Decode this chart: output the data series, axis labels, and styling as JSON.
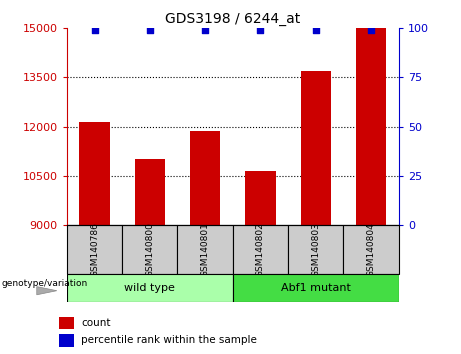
{
  "title": "GDS3198 / 6244_at",
  "samples": [
    "GSM140786",
    "GSM140800",
    "GSM140801",
    "GSM140802",
    "GSM140803",
    "GSM140804"
  ],
  "counts": [
    12150,
    11000,
    11850,
    10650,
    13700,
    15000
  ],
  "percentiles": [
    99,
    99,
    99,
    99,
    99,
    99
  ],
  "ylim_left": [
    9000,
    15000
  ],
  "ylim_right": [
    0,
    100
  ],
  "yticks_left": [
    9000,
    10500,
    12000,
    13500,
    15000
  ],
  "yticks_right": [
    0,
    25,
    50,
    75,
    100
  ],
  "bar_color": "#cc0000",
  "dot_color": "#0000cc",
  "groups": [
    {
      "label": "wild type",
      "indices": [
        0,
        1,
        2
      ],
      "color": "#aaffaa"
    },
    {
      "label": "Abf1 mutant",
      "indices": [
        3,
        4,
        5
      ],
      "color": "#44dd44"
    }
  ],
  "group_label": "genotype/variation",
  "legend_count_label": "count",
  "legend_percentile_label": "percentile rank within the sample",
  "sample_box_color": "#cccccc",
  "bar_width": 0.55
}
